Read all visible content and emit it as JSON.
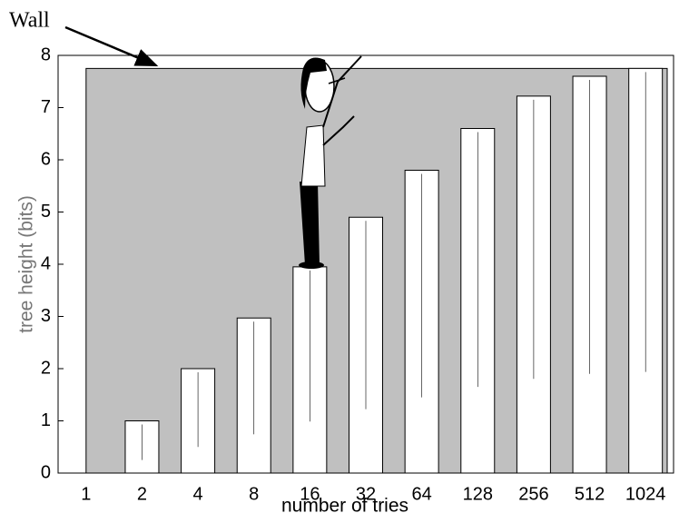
{
  "chart_data": {
    "type": "bar",
    "annotation": "Wall",
    "wall_height": 7.75,
    "wall_color": "#c0c0c0",
    "x_label": "number of tries",
    "y_label": "tree height (bits)",
    "categories": [
      "1",
      "2",
      "4",
      "8",
      "16",
      "32",
      "64",
      "128",
      "256",
      "512",
      "1024"
    ],
    "values": [
      0,
      1.0,
      2.0,
      2.97,
      3.95,
      4.9,
      5.8,
      6.6,
      7.22,
      7.6,
      7.75
    ],
    "color": "#ffffff",
    "ylim": [
      0,
      8
    ],
    "yticks": [
      0,
      1,
      2,
      3,
      4,
      5,
      6,
      7,
      8
    ]
  }
}
